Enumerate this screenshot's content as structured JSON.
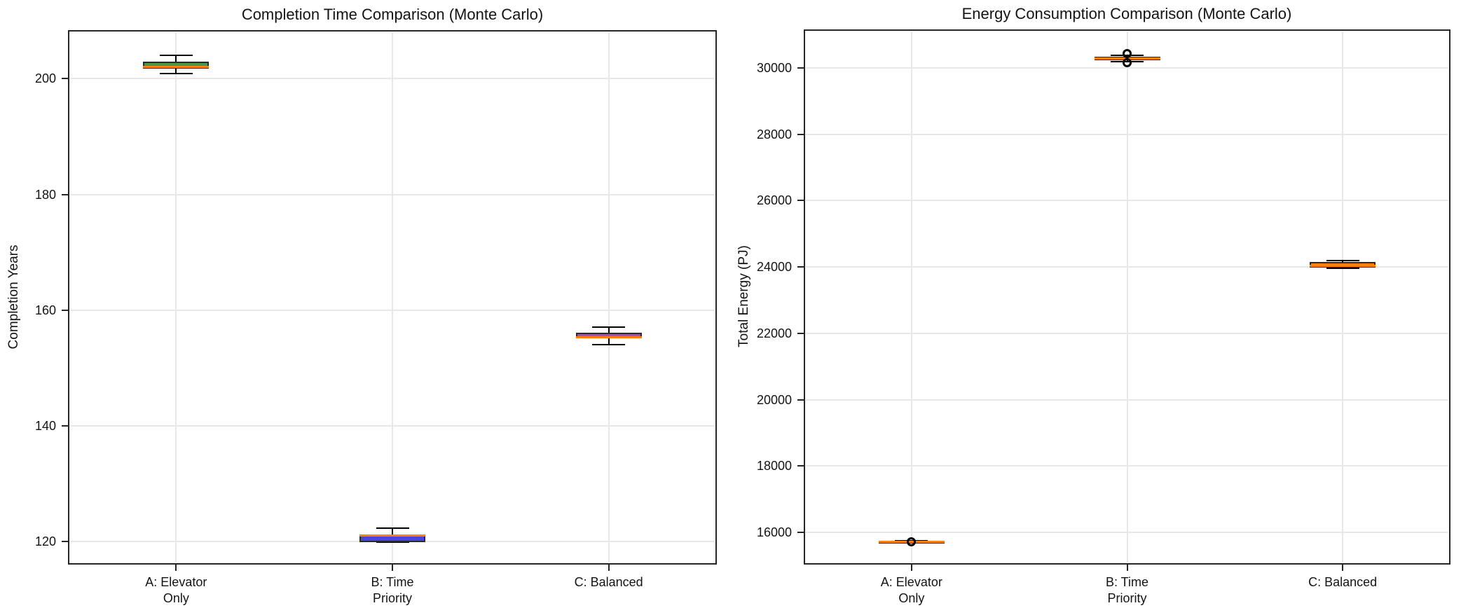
{
  "figure": {
    "background": "#ffffff"
  },
  "colors": {
    "median": "#ff7f0e",
    "box_edge": "#2a2a2a",
    "whisker": "#000000",
    "grid": "#e8e8e8",
    "spine": "#262626",
    "text": "#141414"
  },
  "chart_data": [
    {
      "type": "box",
      "title": "Completion Time Comparison (Monte Carlo)",
      "ylabel": "Completion Years",
      "xlabel": "",
      "grid": true,
      "legend": false,
      "categories": [
        [
          "A: Elevator",
          "Only"
        ],
        [
          "B: Time",
          "Priority"
        ],
        [
          "C: Balanced"
        ]
      ],
      "ylim": [
        116.0,
        208.4
      ],
      "yticks": [
        120,
        140,
        160,
        180,
        200
      ],
      "boxes": [
        {
          "category": "A: Elevator Only",
          "fill": "#489a48",
          "whisker_low": 200.9,
          "q1": 201.7,
          "median": 202.0,
          "q3": 203.0,
          "whisker_high": 204.1,
          "fliers": []
        },
        {
          "category": "B: Time Priority",
          "fill": "#4845e0",
          "whisker_low": 119.85,
          "q1": 119.9,
          "median": 121.05,
          "q3": 121.2,
          "whisker_high": 122.3,
          "fliers": []
        },
        {
          "category": "C: Balanced",
          "fill": "#a055aa",
          "whisker_low": 154.0,
          "q1": 155.1,
          "median": 155.35,
          "q3": 156.1,
          "whisker_high": 157.0,
          "fliers": []
        }
      ]
    },
    {
      "type": "box",
      "title": "Energy Consumption Comparison (Monte Carlo)",
      "ylabel": "Total Energy (PJ)",
      "xlabel": "",
      "grid": true,
      "legend": false,
      "categories": [
        [
          "A: Elevator",
          "Only"
        ],
        [
          "B: Time",
          "Priority"
        ],
        [
          "C: Balanced"
        ]
      ],
      "ylim": [
        15030,
        31160
      ],
      "yticks": [
        16000,
        18000,
        20000,
        22000,
        24000,
        26000,
        28000,
        30000
      ],
      "boxes": [
        {
          "category": "A: Elevator Only",
          "fill": "#ff7f0e",
          "whisker_low": 15700,
          "q1": 15705,
          "median": 15725,
          "q3": 15745,
          "whisker_high": 15755,
          "fliers": [
            15725
          ]
        },
        {
          "category": "B: Time Priority",
          "fill": "#ff7f0e",
          "whisker_low": 30180,
          "q1": 30230,
          "median": 30285,
          "q3": 30335,
          "whisker_high": 30380,
          "fliers": [
            30150,
            30440
          ]
        },
        {
          "category": "C: Balanced",
          "fill": "#ff7f0e",
          "whisker_low": 23955,
          "q1": 23990,
          "median": 24040,
          "q3": 24145,
          "whisker_high": 24190,
          "fliers": []
        }
      ]
    }
  ]
}
